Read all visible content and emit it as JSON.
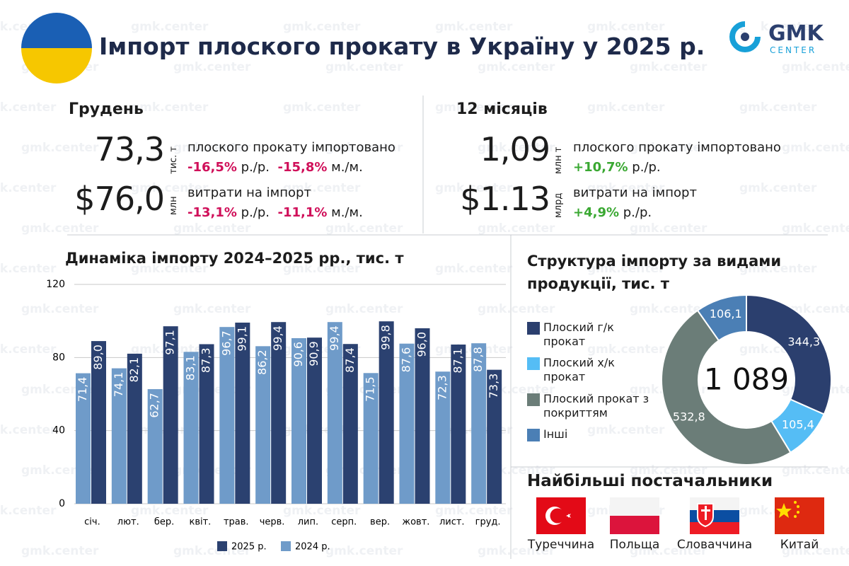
{
  "header": {
    "title": "Імпорт плоского прокату в Україну у 2025 р.",
    "logo": {
      "name": "GMK",
      "tagline": "CENTER"
    }
  },
  "watermark": "gmk.center",
  "december": {
    "title": "Грудень",
    "volume": {
      "value": "73,3",
      "unit": "тис. т",
      "text": "плоского прокату імпортовано",
      "changes": [
        {
          "value": "-16,5%",
          "period": "р./р."
        },
        {
          "value": "-15,8%",
          "period": "м./м."
        }
      ]
    },
    "spending": {
      "value": "$76,0",
      "unit": "млн",
      "text": "витрати на імпорт",
      "changes": [
        {
          "value": "-13,1%",
          "period": "р./р."
        },
        {
          "value": "-11,1%",
          "period": "м./м."
        }
      ]
    }
  },
  "year": {
    "title": "12 місяців",
    "volume": {
      "value": "1,09",
      "unit": "млн т",
      "text": "плоского прокату імпортовано",
      "changes": [
        {
          "value": "+10,7%",
          "period": "р./р."
        }
      ]
    },
    "spending": {
      "value": "$1.13",
      "unit": "млрд",
      "text": "витрати на імпорт",
      "changes": [
        {
          "value": "+4,9%",
          "period": "р./р."
        }
      ]
    }
  },
  "chart_data": [
    {
      "type": "bar",
      "title": "Динаміка імпорту 2024–2025 рр., тис. т",
      "categories": [
        "січ.",
        "лют.",
        "бер.",
        "квіт.",
        "трав.",
        "черв.",
        "лип.",
        "серп.",
        "вер.",
        "жовт.",
        "лист.",
        "груд."
      ],
      "series": [
        {
          "name": "2025 р.",
          "color": "#2b4170",
          "values": [
            89.0,
            82.1,
            97.1,
            87.3,
            99.1,
            99.4,
            90.9,
            87.4,
            99.8,
            96.0,
            87.1,
            73.3
          ],
          "value_labels": [
            "89,0",
            "82,1",
            "97,1",
            "87,3",
            "99,1",
            "99,4",
            "90,9",
            "87,4",
            "99,8",
            "96,0",
            "87,1",
            "73,3"
          ]
        },
        {
          "name": "2024 р.",
          "color": "#6f9bc9",
          "values": [
            71.4,
            74.1,
            62.7,
            83.1,
            96.7,
            86.2,
            90.6,
            99.4,
            71.5,
            87.6,
            72.3,
            87.8
          ],
          "value_labels": [
            "71,4",
            "74,1",
            "62,7",
            "83,1",
            "96,7",
            "86,2",
            "90,6",
            "99,4",
            "71,5",
            "87,6",
            "72,3",
            "87,8"
          ]
        }
      ],
      "ylim": [
        0,
        120
      ],
      "yticks": [
        0,
        40,
        80,
        120
      ],
      "grid": true
    },
    {
      "type": "pie",
      "title": "Структура імпорту за видами продукції, тис. т",
      "categories": [
        "Плоский г/к прокат",
        "Плоский х/к прокат",
        "Плоский прокат з покриттям",
        "Інші"
      ],
      "values": [
        344.3,
        105.4,
        532.8,
        106.1
      ],
      "value_labels": [
        "344,3",
        "105,4",
        "532,8",
        "106,1"
      ],
      "colors": [
        "#2b3f6e",
        "#55bdf5",
        "#6b7d78",
        "#4b7fb5"
      ],
      "center_label": "1 089"
    }
  ],
  "suppliers": {
    "title": "Найбільші постачальники",
    "countries": [
      "Туреччина",
      "Польща",
      "Словаччина",
      "Китай"
    ]
  }
}
